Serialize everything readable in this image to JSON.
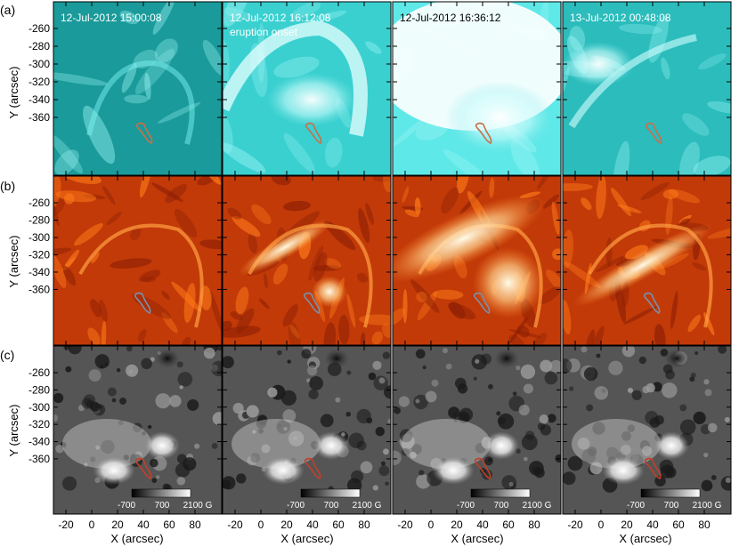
{
  "figure": {
    "row_labels": [
      "(a)",
      "(b)",
      "(c)"
    ],
    "timestamps": [
      "12-Jul-2012 15:00:08",
      "12-Jul-2012 16:12:08",
      "12-Jul-2012 16:36:12",
      "13-Jul-2012 00:48:08"
    ],
    "panel_note": "eruption onset",
    "ylabel": "Y (arcsec)",
    "xlabel": "X (arcsec)",
    "yticks": [
      "-260",
      "-280",
      "-300",
      "-320",
      "-340",
      "-360"
    ],
    "xticks": [
      "-20",
      "0",
      "20",
      "40",
      "60",
      "80"
    ],
    "colorbar_ticks": [
      "-700",
      "700",
      "2100 G"
    ],
    "row_styles": [
      "teal euv",
      "orange euv",
      "grayscale magnetogram"
    ],
    "contour_colors": {
      "a": "#c8704a",
      "b": "#7a8fa8",
      "c": "#c0402a"
    }
  }
}
